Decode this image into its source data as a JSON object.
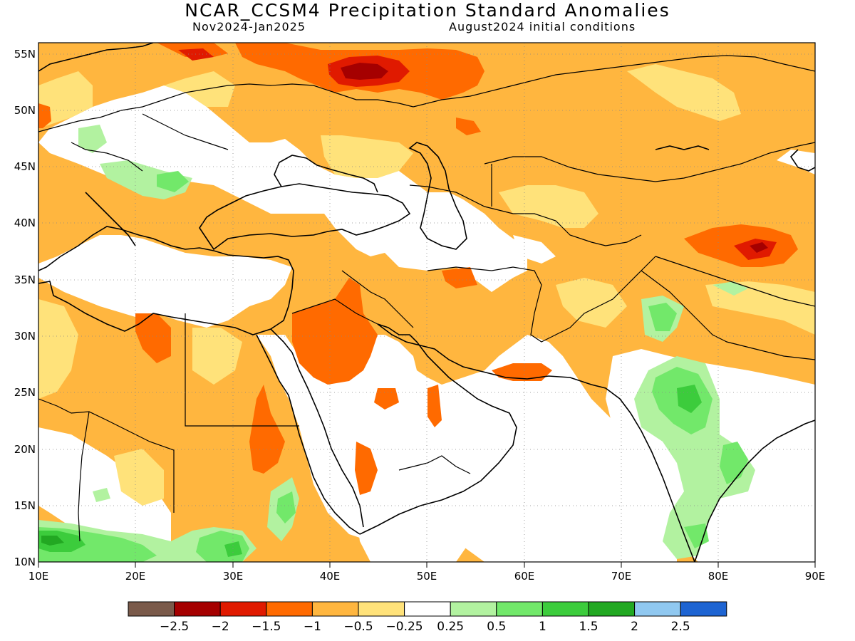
{
  "title": "NCAR_CCSM4 Precipitation Standard Anomalies",
  "subtitle_left": "Nov2024-Jan2025",
  "subtitle_right": "August2024 initial conditions",
  "lat_labels": [
    "55N",
    "50N",
    "45N",
    "40N",
    "35N",
    "30N",
    "25N",
    "20N",
    "15N",
    "10N"
  ],
  "lon_labels": [
    "10E",
    "20E",
    "30E",
    "40E",
    "50E",
    "60E",
    "70E",
    "80E",
    "90E"
  ],
  "colorbar": {
    "colors": [
      "#7a5a4a",
      "#a50000",
      "#e01a00",
      "#ff6a00",
      "#ffb63f",
      "#ffe27a",
      "#ffffff",
      "#b2f2a0",
      "#72e86a",
      "#3ccc3c",
      "#22a822",
      "#90c8f0",
      "#1e64d2"
    ],
    "labels": [
      "-2.5",
      "-2",
      "-1.5",
      "-1",
      "-0.5",
      "-0.25",
      "0.25",
      "0.5",
      "1",
      "1.5",
      "2",
      "2.5"
    ]
  }
}
